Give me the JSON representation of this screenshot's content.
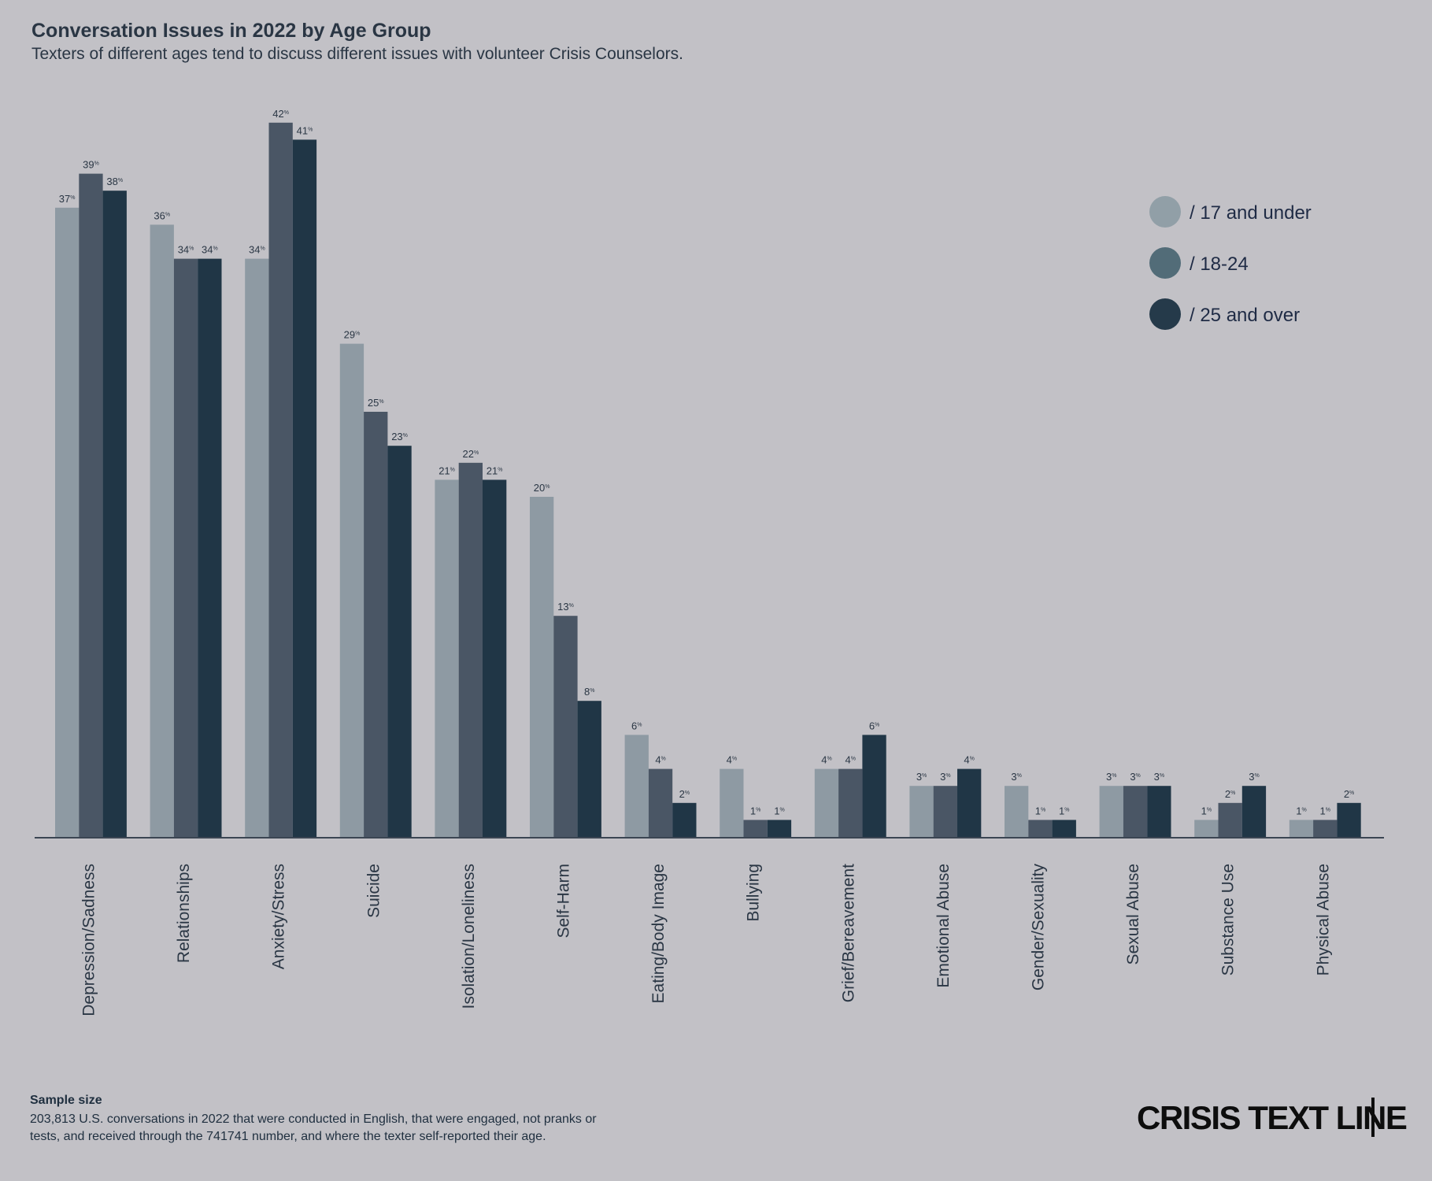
{
  "header": {
    "title": "Conversation Issues in 2022 by Age Group",
    "subtitle": "Texters of different ages tend to discuss different issues with volunteer Crisis Counselors."
  },
  "chart_data": {
    "type": "bar",
    "title": "Conversation Issues in 2022 by Age Group",
    "subtitle": "Texters of different ages tend to discuss different issues with volunteer Crisis Counselors.",
    "xlabel": "",
    "ylabel": "",
    "ylim": [
      0,
      42
    ],
    "grid": false,
    "legend_position": "top-right",
    "value_suffix": "%",
    "categories": [
      "Depression/Sadness",
      "Relationships",
      "Anxiety/Stress",
      "Suicide",
      "Isolation/Loneliness",
      "Self-Harm",
      "Eating/Body Image",
      "Bullying",
      "Grief/Bereavement",
      "Emotional Abuse",
      "Gender/Sexuality",
      "Sexual Abuse",
      "Substance Use",
      "Physical Abuse"
    ],
    "series": [
      {
        "name": "/ 17 and under",
        "bar_color": "#8e9aa3",
        "legend_color": "#919fa7",
        "values": [
          37,
          36,
          34,
          29,
          21,
          20,
          6,
          4,
          4,
          3,
          3,
          3,
          1,
          1
        ]
      },
      {
        "name": "/ 18-24",
        "bar_color": "#4a5665",
        "legend_color": "#526c78",
        "values": [
          39,
          34,
          42,
          25,
          22,
          13,
          4,
          1,
          4,
          3,
          1,
          3,
          2,
          1
        ]
      },
      {
        "name": "/ 25 and over",
        "bar_color": "#203646",
        "legend_color": "#253a4a",
        "values": [
          38,
          34,
          41,
          23,
          21,
          8,
          2,
          1,
          6,
          4,
          1,
          3,
          3,
          2
        ]
      }
    ]
  },
  "footer": {
    "sample_heading": "Sample size",
    "sample_line1": "203,813 U.S. conversations in 2022 that were conducted in English, that were engaged, not pranks or",
    "sample_line2": "tests, and received through the 741741 number, and where the texter self-reported their age.",
    "brand": "CRISIS TEXT LINE"
  },
  "colors": {
    "background": "#c2c1c6",
    "axis": "#3b4553",
    "text": "#2a3644"
  }
}
